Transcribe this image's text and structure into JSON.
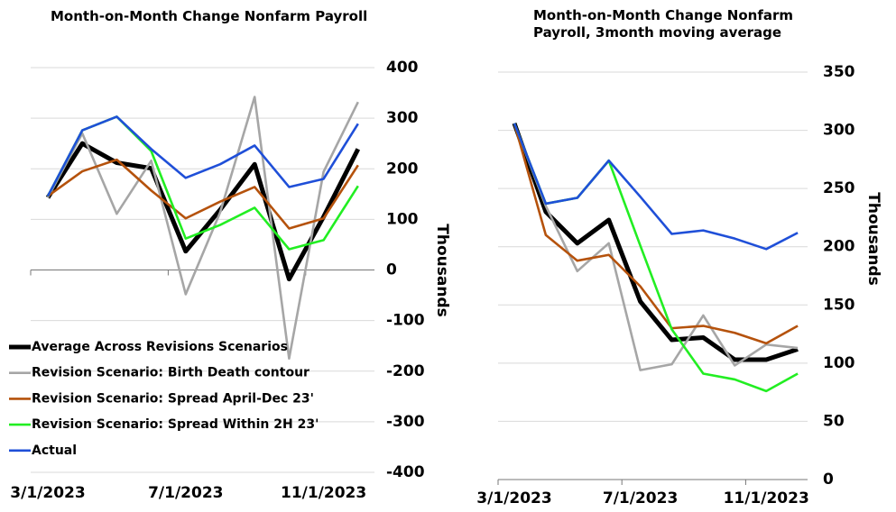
{
  "chart_data": [
    {
      "type": "line",
      "title": "Month-on-Month Change Nonfarm Payroll",
      "categories": [
        "3/1/2023",
        null,
        null,
        null,
        "7/1/2023",
        null,
        null,
        null,
        "11/1/2023",
        null
      ],
      "y_axis_label": "Thousands",
      "ylim": [
        -400,
        400
      ],
      "yticks": [
        400,
        300,
        200,
        100,
        0,
        -100,
        -200,
        -300,
        -400
      ],
      "grid": true,
      "legend": "lower left",
      "series": [
        {
          "name": "Average Across Revisions Scenarios",
          "color": "#000000",
          "values": [
            143,
            250,
            212,
            201,
            37,
            119,
            209,
            -18,
            105,
            239
          ]
        },
        {
          "name": "Revision Scenario: Birth Death contour",
          "color": "#a6a6a6",
          "values": [
            143,
            270,
            111,
            216,
            -48,
            114,
            342,
            -175,
            194,
            332
          ]
        },
        {
          "name": "Revision Scenario: Spread April-Dec 23'",
          "color": "#b5520c",
          "values": [
            146,
            195,
            218,
            157,
            102,
            135,
            164,
            82,
            102,
            207
          ]
        },
        {
          "name": "Revision Scenario: Spread Within 2H 23'",
          "color": "#22ee22",
          "values": [
            146,
            276,
            303,
            235,
            62,
            89,
            123,
            41,
            59,
            166
          ]
        },
        {
          "name": "Actual",
          "color": "#1f4fd8",
          "values": [
            146,
            276,
            303,
            239,
            182,
            209,
            246,
            164,
            180,
            289
          ]
        }
      ]
    },
    {
      "type": "line",
      "title": "Month-on-Month Change Nonfarm Payroll, 3month moving average",
      "categories": [
        "3/1/2023",
        null,
        null,
        null,
        "7/1/2023",
        null,
        null,
        null,
        "11/1/2023",
        null
      ],
      "y_axis_label": "Thousands",
      "ylim": [
        0,
        350
      ],
      "yticks": [
        350,
        300,
        250,
        200,
        150,
        100,
        50,
        0
      ],
      "grid": true,
      "series": [
        {
          "color": "#000000",
          "values": [
            306,
            230,
            203,
            223,
            153,
            120,
            122,
            103,
            103,
            112
          ]
        },
        {
          "color": "#a6a6a6",
          "values": [
            306,
            235,
            179,
            203,
            94,
            99,
            141,
            98,
            116,
            113
          ]
        },
        {
          "color": "#b5520c",
          "values": [
            306,
            210,
            188,
            193,
            166,
            130,
            132,
            126,
            117,
            132
          ]
        },
        {
          "color": "#22ee22",
          "values": [
            306,
            237,
            242,
            274,
            201,
            129,
            91,
            86,
            76,
            91
          ]
        },
        {
          "color": "#1f4fd8",
          "values": [
            306,
            237,
            242,
            274,
            243,
            211,
            214,
            207,
            198,
            212
          ]
        }
      ]
    }
  ]
}
